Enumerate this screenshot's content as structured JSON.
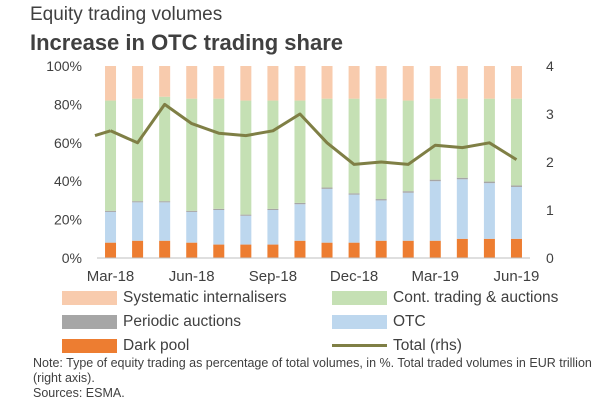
{
  "chart_data": {
    "type": "bar",
    "stacked": true,
    "title": "Equity trading volumes",
    "subtitle": "Increase in OTC trading share",
    "categories": [
      "Mar-18",
      "Apr-18",
      "May-18",
      "Jun-18",
      "Jul-18",
      "Aug-18",
      "Sep-18",
      "Oct-18",
      "Nov-18",
      "Dec-18",
      "Jan-19",
      "Feb-19",
      "Mar-19",
      "Apr-19",
      "May-19",
      "Jun-19"
    ],
    "x_tick_labels": [
      "Mar-18",
      "Jun-18",
      "Sep-18",
      "Dec-18",
      "Mar-19",
      "Jun-19"
    ],
    "y_left": {
      "ylim": [
        0,
        100
      ],
      "ticks": [
        "0%",
        "20%",
        "40%",
        "60%",
        "80%",
        "100%"
      ]
    },
    "y_right": {
      "ylim": [
        0,
        4
      ],
      "ticks": [
        "0",
        "1",
        "2",
        "3",
        "4"
      ]
    },
    "grid": false,
    "legend_position": "bottom",
    "series": [
      {
        "name": "Dark pool",
        "axis": "left",
        "color": "#ED7D31",
        "values": [
          8,
          9,
          9,
          8,
          7,
          7,
          7,
          9,
          8,
          8,
          9,
          9,
          9,
          10,
          10,
          10
        ]
      },
      {
        "name": "OTC",
        "axis": "left",
        "color": "#BDD7EE",
        "values": [
          16,
          20,
          20,
          16,
          18,
          15,
          18,
          19,
          28,
          25,
          21,
          25,
          31,
          31,
          29,
          27
        ]
      },
      {
        "name": "Periodic auctions",
        "axis": "left",
        "color": "#A6A6A6",
        "values": [
          0.6,
          0.6,
          0.6,
          0.6,
          0.6,
          0.6,
          0.6,
          0.7,
          0.7,
          0.7,
          0.7,
          0.8,
          0.8,
          0.8,
          0.8,
          0.8
        ]
      },
      {
        "name": "Cont. trading & auctions",
        "axis": "left",
        "color": "#C5E0B4",
        "values": [
          57.4,
          53.4,
          54.4,
          58.4,
          57.4,
          59.4,
          56.4,
          53.3,
          46.3,
          49.3,
          52.3,
          47.2,
          42.2,
          41.2,
          43.2,
          45.2
        ]
      },
      {
        "name": "Systematic internalisers",
        "axis": "left",
        "color": "#F8CBAD",
        "values": [
          18,
          17,
          16,
          17,
          17,
          18,
          18,
          18,
          17,
          17,
          17,
          18,
          17,
          17,
          17,
          17
        ]
      },
      {
        "name": "Total (rhs)",
        "axis": "right",
        "type": "line",
        "color": "#7F7F45",
        "values": [
          2.65,
          2.4,
          3.2,
          2.8,
          2.6,
          2.55,
          2.65,
          3.0,
          2.4,
          1.95,
          2.0,
          1.95,
          2.35,
          2.3,
          2.4,
          2.05
        ]
      }
    ]
  },
  "legend": [
    {
      "label": "Systematic internalisers",
      "color": "#F8CBAD",
      "kind": "box"
    },
    {
      "label": "Cont. trading & auctions",
      "color": "#C5E0B4",
      "kind": "box"
    },
    {
      "label": "Periodic auctions",
      "color": "#A6A6A6",
      "kind": "box"
    },
    {
      "label": "OTC",
      "color": "#BDD7EE",
      "kind": "box"
    },
    {
      "label": "Dark pool",
      "color": "#ED7D31",
      "kind": "box"
    },
    {
      "label": "Total (rhs)",
      "color": "#7F7F45",
      "kind": "line"
    }
  ],
  "note": "Note: Type of equity trading as percentage of total volumes, in %. Total traded volumes in EUR trillion (right axis).",
  "sources": "Sources:  ESMA."
}
